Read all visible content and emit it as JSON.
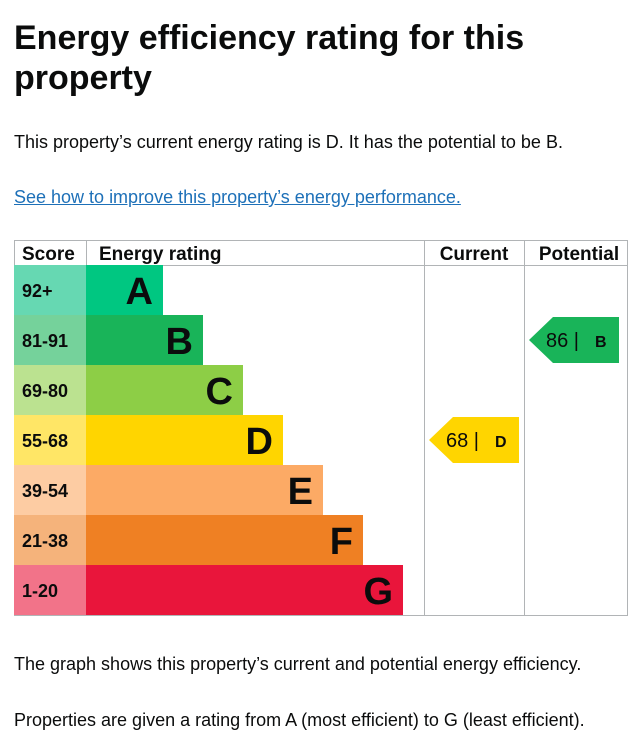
{
  "heading": {
    "title_line1": "Energy efficiency rating for this",
    "title_line2": "property"
  },
  "intro": "This property’s current energy rating is D. It has the potential to be B.",
  "improve_link": "See how to improve this property’s energy performance.",
  "chart_data": {
    "type": "table",
    "headers": {
      "score": "Score",
      "rating": "Energy rating",
      "current": "Current",
      "potential": "Potential"
    },
    "bands": [
      {
        "letter": "A",
        "score": "92+",
        "color": "#00c781",
        "score_bg": "#66d8b2"
      },
      {
        "letter": "B",
        "score": "81-91",
        "color": "#19b459",
        "score_bg": "#75d29b"
      },
      {
        "letter": "C",
        "score": "69-80",
        "color": "#8dce46",
        "score_bg": "#bbe290"
      },
      {
        "letter": "D",
        "score": "55-68",
        "color": "#ffd500",
        "score_bg": "#ffe666"
      },
      {
        "letter": "E",
        "score": "39-54",
        "color": "#fcaa65",
        "score_bg": "#fdcca3"
      },
      {
        "letter": "F",
        "score": "21-38",
        "color": "#ef8023",
        "score_bg": "#f5b37b"
      },
      {
        "letter": "G",
        "score": "1-20",
        "color": "#e9153b",
        "score_bg": "#f27389"
      }
    ],
    "current": {
      "value": 68,
      "letter": "D",
      "value_text": "68 |",
      "letter_text": "D"
    },
    "potential": {
      "value": 86,
      "letter": "B",
      "value_text": "86 |",
      "letter_text": "B"
    }
  },
  "notes": {
    "graph": "The graph shows this property’s current and potential energy efficiency.",
    "ratings": "Properties are given a rating from A (most efficient) to G (least efficient)."
  }
}
